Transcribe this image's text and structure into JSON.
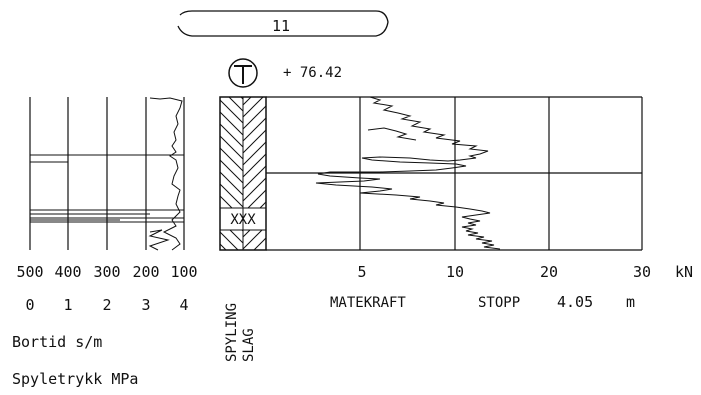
{
  "header": {
    "borehole_id": "11",
    "elevation": "+ 76.42"
  },
  "left_panel": {
    "bortid_ticks": [
      "500",
      "400",
      "300",
      "200",
      "100"
    ],
    "spyletrykk_ticks": [
      "0",
      "1",
      "2",
      "3",
      "4"
    ],
    "bortid_label": "Bortid s/m",
    "spyletrykk_label": "Spyletrykk MPa"
  },
  "middle_column": {
    "label_1": "SPYLING",
    "label_2": "SLAG",
    "marker": "XXX"
  },
  "right_panel": {
    "force_ticks": [
      "5",
      "10",
      "20",
      "30"
    ],
    "unit": "kN",
    "force_label": "MATEKRAFT",
    "stop_label": "STOPP",
    "stop_depth": "4.05",
    "stop_unit": "m"
  },
  "colors": {
    "ink": "#111111",
    "background": "#ffffff"
  },
  "symbol": "t-in-circle-icon"
}
